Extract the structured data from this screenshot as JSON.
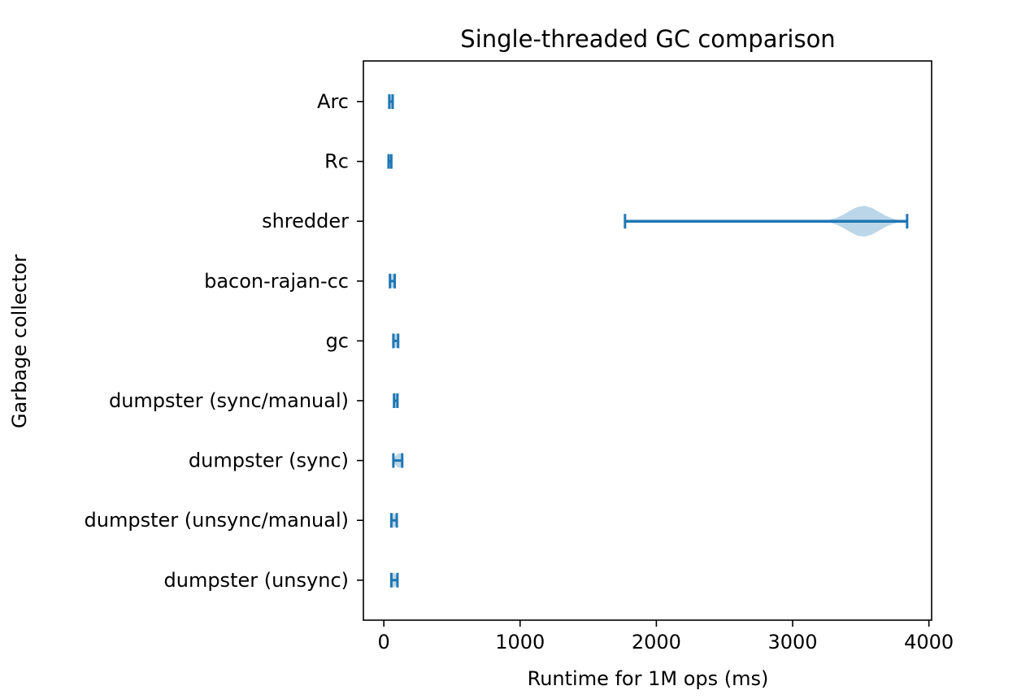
{
  "chart_data": {
    "type": "violin",
    "orientation": "horizontal",
    "title": "Single-threaded GC comparison",
    "xlabel": "Runtime for 1M ops (ms)",
    "ylabel": "Garbage collector",
    "xlim": [
      -150,
      4020
    ],
    "xticks": [
      0,
      1000,
      2000,
      3000,
      4000
    ],
    "grid": false,
    "legend": "none",
    "colors": {
      "line": "#1f77b4",
      "body": "#1f77b4"
    },
    "series": [
      {
        "category": "Arc",
        "min": 40,
        "max": 65,
        "mode": 52
      },
      {
        "category": "Rc",
        "min": 35,
        "max": 55,
        "mode": 45
      },
      {
        "category": "shredder",
        "min": 1770,
        "max": 3840,
        "mode": 3520
      },
      {
        "category": "bacon-rajan-cc",
        "min": 45,
        "max": 80,
        "mode": 62
      },
      {
        "category": "gc",
        "min": 70,
        "max": 105,
        "mode": 88
      },
      {
        "category": "dumpster (sync/manual)",
        "min": 75,
        "max": 100,
        "mode": 88
      },
      {
        "category": "dumpster (sync)",
        "min": 70,
        "max": 135,
        "mode": 115
      },
      {
        "category": "dumpster (unsync/manual)",
        "min": 55,
        "max": 95,
        "mode": 70
      },
      {
        "category": "dumpster (unsync)",
        "min": 55,
        "max": 100,
        "mode": 72
      }
    ]
  }
}
